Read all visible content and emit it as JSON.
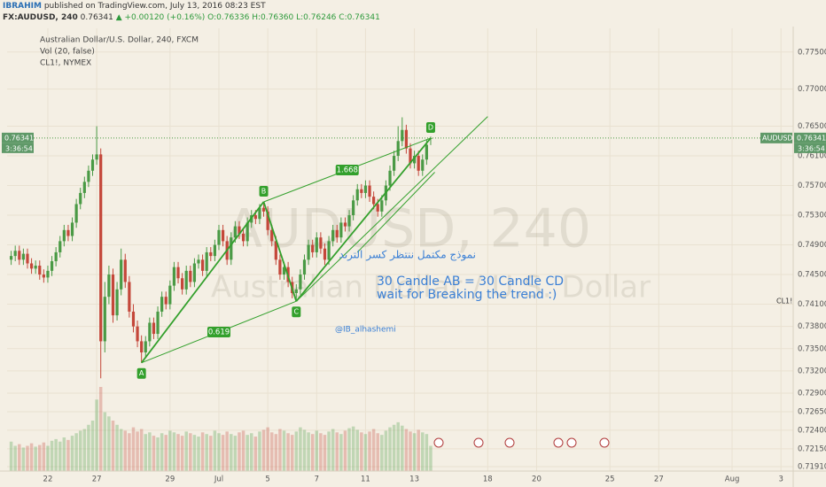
{
  "header": {
    "author": "IBRAHIM",
    "published": "published on TradingView.com, July 13, 2016 08:23 EST",
    "symbol": "FX:AUDUSD, 240",
    "last": "0.76341",
    "change": "▲ +0.00120 (+0.16%)",
    "open": "O:0.76336",
    "high": "H:0.76360",
    "low": "L:0.76246",
    "close": "C:0.76341"
  },
  "chart_data": {
    "type": "candlestick",
    "title": "Australian Dollar/U.S. Dollar, 240, FXCM",
    "indicators": [
      "Vol (20, false)",
      "CL1!, NYMEX"
    ],
    "watermark": [
      "AUDUSD, 240",
      "Australian Dollar / U.S. Dollar"
    ],
    "open": [
      0.747,
      0.7475,
      0.7482,
      0.747,
      0.7478,
      0.7465,
      0.7458,
      0.7462,
      0.745,
      0.7446,
      0.7455,
      0.7468,
      0.748,
      0.7495,
      0.751,
      0.7502,
      0.752,
      0.7545,
      0.756,
      0.7575,
      0.759,
      0.7605,
      0.7612,
      0.736,
      0.742,
      0.745,
      0.7395,
      0.743,
      0.747,
      0.744,
      0.74,
      0.738,
      0.736,
      0.7345,
      0.736,
      0.7385,
      0.737,
      0.74,
      0.742,
      0.741,
      0.7435,
      0.746,
      0.7445,
      0.743,
      0.7455,
      0.744,
      0.7465,
      0.747,
      0.7455,
      0.748,
      0.7475,
      0.749,
      0.751,
      0.7495,
      0.747,
      0.75,
      0.7515,
      0.7505,
      0.7495,
      0.752,
      0.753,
      0.7525,
      0.754,
      0.7535,
      0.751,
      0.7495,
      0.747,
      0.745,
      0.746,
      0.744,
      0.7425,
      0.743,
      0.745,
      0.747,
      0.749,
      0.748,
      0.75,
      0.7485,
      0.747,
      0.7495,
      0.751,
      0.75,
      0.752,
      0.7515,
      0.753,
      0.755,
      0.7565,
      0.756,
      0.757,
      0.7555,
      0.7545,
      0.7535,
      0.755,
      0.757,
      0.759,
      0.761,
      0.763,
      0.7645,
      0.762,
      0.76,
      0.761,
      0.759,
      0.7605,
      0.76336
    ],
    "high": [
      0.7482,
      0.7489,
      0.7489,
      0.7485,
      0.7485,
      0.7472,
      0.7469,
      0.7469,
      0.7457,
      0.7462,
      0.7475,
      0.7487,
      0.7502,
      0.7517,
      0.7517,
      0.7527,
      0.7552,
      0.7567,
      0.7582,
      0.7597,
      0.7612,
      0.765,
      0.762,
      0.744,
      0.7462,
      0.7458,
      0.744,
      0.7485,
      0.7478,
      0.7448,
      0.741,
      0.7388,
      0.7368,
      0.7367,
      0.7392,
      0.7392,
      0.7407,
      0.7427,
      0.7427,
      0.7442,
      0.7467,
      0.7467,
      0.7452,
      0.7462,
      0.7462,
      0.7472,
      0.7477,
      0.7477,
      0.7487,
      0.7487,
      0.7497,
      0.7517,
      0.7517,
      0.7502,
      0.7507,
      0.7522,
      0.7522,
      0.7512,
      0.7527,
      0.7537,
      0.7537,
      0.7545,
      0.7548,
      0.7542,
      0.7517,
      0.7502,
      0.7477,
      0.7467,
      0.7467,
      0.7447,
      0.7437,
      0.7457,
      0.7477,
      0.7497,
      0.7497,
      0.7507,
      0.7507,
      0.7492,
      0.7502,
      0.7517,
      0.7517,
      0.7527,
      0.7527,
      0.7537,
      0.7557,
      0.7572,
      0.7572,
      0.7577,
      0.7577,
      0.7562,
      0.7552,
      0.7557,
      0.7577,
      0.7597,
      0.7617,
      0.765,
      0.7662,
      0.7652,
      0.7627,
      0.7617,
      0.7617,
      0.7612,
      0.7632,
      0.7636
    ],
    "low": [
      0.7463,
      0.7468,
      0.7463,
      0.7463,
      0.7458,
      0.7451,
      0.7451,
      0.7443,
      0.7439,
      0.7439,
      0.7448,
      0.7461,
      0.7473,
      0.7488,
      0.7495,
      0.7495,
      0.7513,
      0.7538,
      0.7553,
      0.7568,
      0.7583,
      0.7598,
      0.731,
      0.7345,
      0.741,
      0.7385,
      0.7388,
      0.7422,
      0.7432,
      0.7392,
      0.7372,
      0.7352,
      0.7331,
      0.7338,
      0.7353,
      0.7363,
      0.7363,
      0.7393,
      0.7403,
      0.7403,
      0.7428,
      0.7438,
      0.7423,
      0.7423,
      0.7433,
      0.7433,
      0.7458,
      0.7448,
      0.7448,
      0.7468,
      0.7468,
      0.7483,
      0.7488,
      0.7463,
      0.7463,
      0.7493,
      0.7498,
      0.7488,
      0.7488,
      0.7513,
      0.7518,
      0.7518,
      0.7528,
      0.7503,
      0.7488,
      0.7463,
      0.7443,
      0.7443,
      0.7433,
      0.7418,
      0.7414,
      0.7423,
      0.7443,
      0.7463,
      0.7473,
      0.7473,
      0.7478,
      0.7463,
      0.7463,
      0.7488,
      0.7493,
      0.7493,
      0.7508,
      0.7508,
      0.7523,
      0.7543,
      0.7553,
      0.7553,
      0.7548,
      0.7538,
      0.7528,
      0.7528,
      0.7543,
      0.7563,
      0.7583,
      0.7603,
      0.7623,
      0.7613,
      0.7593,
      0.7593,
      0.7583,
      0.7583,
      0.7598,
      0.76246
    ],
    "close": [
      0.7475,
      0.7482,
      0.747,
      0.7478,
      0.7465,
      0.7458,
      0.7462,
      0.745,
      0.7446,
      0.7455,
      0.7468,
      0.748,
      0.7495,
      0.751,
      0.7502,
      0.752,
      0.7545,
      0.756,
      0.7575,
      0.759,
      0.7605,
      0.7612,
      0.736,
      0.742,
      0.745,
      0.7395,
      0.743,
      0.747,
      0.744,
      0.74,
      0.738,
      0.736,
      0.7345,
      0.736,
      0.7385,
      0.737,
      0.74,
      0.742,
      0.741,
      0.7435,
      0.746,
      0.7445,
      0.743,
      0.7455,
      0.744,
      0.7465,
      0.747,
      0.7455,
      0.748,
      0.7475,
      0.749,
      0.751,
      0.7495,
      0.747,
      0.75,
      0.7515,
      0.7505,
      0.7495,
      0.752,
      0.753,
      0.7525,
      0.754,
      0.7535,
      0.751,
      0.7495,
      0.747,
      0.745,
      0.746,
      0.744,
      0.7425,
      0.743,
      0.745,
      0.747,
      0.749,
      0.748,
      0.75,
      0.7485,
      0.747,
      0.7495,
      0.751,
      0.75,
      0.752,
      0.7515,
      0.753,
      0.755,
      0.7565,
      0.756,
      0.757,
      0.7555,
      0.7545,
      0.7535,
      0.755,
      0.757,
      0.759,
      0.761,
      0.763,
      0.7645,
      0.762,
      0.76,
      0.761,
      0.759,
      0.7605,
      0.7625,
      0.76341
    ],
    "volume": [
      35,
      30,
      32,
      28,
      30,
      33,
      29,
      31,
      34,
      30,
      36,
      38,
      35,
      40,
      37,
      42,
      45,
      48,
      50,
      55,
      60,
      85,
      100,
      70,
      65,
      60,
      55,
      50,
      48,
      45,
      52,
      47,
      50,
      44,
      46,
      42,
      40,
      45,
      43,
      48,
      46,
      44,
      42,
      47,
      45,
      43,
      41,
      46,
      44,
      42,
      48,
      45,
      43,
      47,
      44,
      42,
      46,
      48,
      43,
      45,
      41,
      47,
      49,
      52,
      46,
      44,
      50,
      48,
      45,
      43,
      47,
      52,
      49,
      46,
      44,
      48,
      45,
      43,
      47,
      50,
      46,
      44,
      48,
      51,
      53,
      49,
      46,
      44,
      47,
      50,
      45,
      43,
      48,
      52,
      55,
      58,
      54,
      50,
      47,
      45,
      49,
      46,
      44,
      30
    ],
    "colors": {
      "up": "#4a9a45",
      "down": "#c4473a",
      "pattern": "#33a02c"
    },
    "ylim": [
      0.7185,
      0.7782
    ],
    "yticks": [
      {
        "value": 0.775,
        "label": "0.77500"
      },
      {
        "value": 0.77,
        "label": "0.77000"
      },
      {
        "value": 0.765,
        "label": "0.76500"
      },
      {
        "value": 0.761,
        "label": "0.76100"
      },
      {
        "value": 0.757,
        "label": "0.75700"
      },
      {
        "value": 0.753,
        "label": "0.75300"
      },
      {
        "value": 0.749,
        "label": "0.74900"
      },
      {
        "value": 0.745,
        "label": "0.74500"
      },
      {
        "value": 0.741,
        "label": "0.74100"
      },
      {
        "value": 0.738,
        "label": "0.73800"
      },
      {
        "value": 0.735,
        "label": "0.73500"
      },
      {
        "value": 0.732,
        "label": "0.73200"
      },
      {
        "value": 0.729,
        "label": "0.72900"
      },
      {
        "value": 0.7265,
        "label": "0.72650"
      },
      {
        "value": 0.724,
        "label": "0.72400"
      },
      {
        "value": 0.7215,
        "label": "0.72150"
      },
      {
        "value": 0.7191,
        "label": "0.71910"
      }
    ],
    "xlim": [
      -1,
      192
    ],
    "xticks": [
      {
        "value": 9,
        "label": "22"
      },
      {
        "value": 21,
        "label": "27"
      },
      {
        "value": 39,
        "label": "29"
      },
      {
        "value": 51,
        "label": "Jul"
      },
      {
        "value": 63,
        "label": "5"
      },
      {
        "value": 75,
        "label": "7"
      },
      {
        "value": 87,
        "label": "11"
      },
      {
        "value": 99,
        "label": "13"
      },
      {
        "value": 117,
        "label": "18"
      },
      {
        "value": 129,
        "label": "20"
      },
      {
        "value": 147,
        "label": "25"
      },
      {
        "value": 159,
        "label": "27"
      },
      {
        "value": 177,
        "label": "Aug"
      },
      {
        "value": 189,
        "label": "3"
      }
    ],
    "grid": true,
    "last_price": 0.76341,
    "countdown": "3:36:54",
    "symbol_tag": "AUDUSD",
    "overlay_label": "CL1!",
    "pattern": {
      "points": [
        {
          "label": "A",
          "x": 32,
          "y": 0.7331
        },
        {
          "label": "B",
          "x": 62,
          "y": 0.7548
        },
        {
          "label": "C",
          "x": 70,
          "y": 0.7414
        },
        {
          "label": "D",
          "x": 103,
          "y": 0.7634
        }
      ],
      "ratios": [
        0.619,
        1.668
      ]
    },
    "trendlines": [
      {
        "x": [
          70,
          117
        ],
        "y": [
          0.7414,
          0.7663
        ]
      },
      {
        "x": [
          85,
          104
        ],
        "y": [
          0.748,
          0.7588
        ]
      }
    ],
    "annotations": [
      "نموذج مكتمل ننتظر كسر الترند",
      "30 Candle AB = 30 Candle CD",
      "wait for Breaking the trend :)",
      "@IB_alhashemi"
    ]
  }
}
